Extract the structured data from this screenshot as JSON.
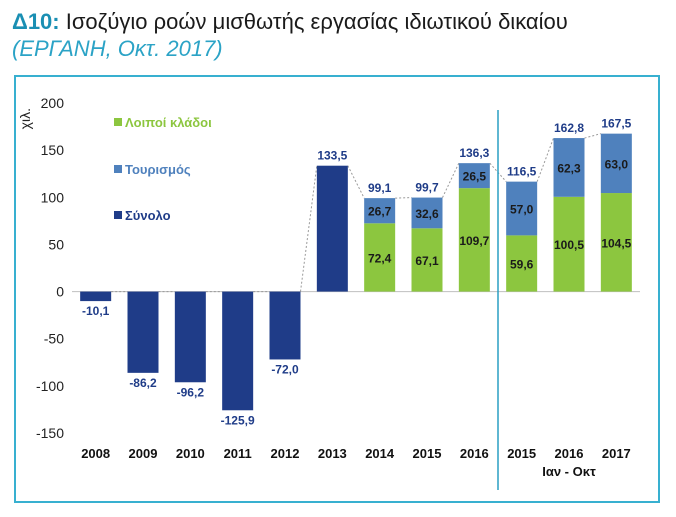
{
  "header": {
    "code": "Δ10:",
    "title": "Ισοζύγιο ροών μισθωτής εργασίας ιδιωτικού δικαίου",
    "source": "(ΕΡΓΑΝΗ, Οκτ. 2017)"
  },
  "colors": {
    "total": "#1f3c88",
    "tourism": "#4f81bd",
    "others": "#8cc63f",
    "accent": "#2ba3c6"
  },
  "chart_data": {
    "type": "bar",
    "ylabel": "χιλ.",
    "ylim": [
      -150,
      200
    ],
    "yticks": [
      200,
      150,
      100,
      50,
      0,
      -50,
      -100,
      -150
    ],
    "categories": [
      "2008",
      "2009",
      "2010",
      "2011",
      "2012",
      "2013",
      "2014",
      "2015",
      "2016",
      "2015",
      "2016",
      "2017"
    ],
    "group_label": "Ιαν - Οκτ",
    "legend": [
      "Λοιποί κλάδοι",
      "Τουρισμός",
      "Σύνολο"
    ],
    "series": [
      {
        "name": "Σύνολο",
        "values": [
          -10.1,
          -86.2,
          -96.2,
          -125.9,
          -72.0,
          133.5,
          null,
          null,
          null,
          null,
          null,
          null
        ]
      },
      {
        "name": "Λοιποί κλάδοι",
        "values": [
          null,
          null,
          null,
          null,
          null,
          null,
          72.4,
          67.1,
          109.7,
          59.6,
          100.5,
          104.5
        ]
      },
      {
        "name": "Τουρισμός",
        "values": [
          null,
          null,
          null,
          null,
          null,
          null,
          26.7,
          32.6,
          26.5,
          57.0,
          62.3,
          63.0
        ]
      }
    ],
    "totals_labels": [
      "-10,1",
      "-86,2",
      "-96,2",
      "-125,9",
      "-72,0",
      "133,5",
      "99,1",
      "99,7",
      "136,3",
      "116,5",
      "162,8",
      "167,5"
    ],
    "others_labels": [
      "",
      "",
      "",
      "",
      "",
      "",
      "72,4",
      "67,1",
      "109,7",
      "59,6",
      "100,5",
      "104,5"
    ],
    "tourism_labels": [
      "",
      "",
      "",
      "",
      "",
      "",
      "26,7",
      "32,6",
      "26,5",
      "57,0",
      "62,3",
      "63,0"
    ]
  }
}
